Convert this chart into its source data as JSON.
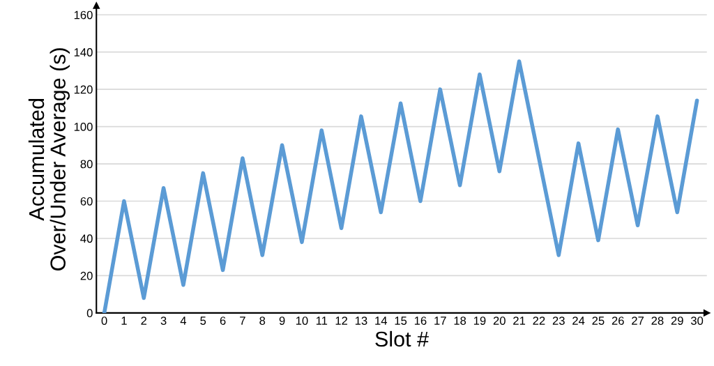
{
  "chart_data": {
    "type": "line",
    "xlabel": "Slot #",
    "ylabel": "Accumulated\nOver/Under Average (s)",
    "x": [
      0,
      1,
      2,
      3,
      4,
      5,
      6,
      7,
      8,
      9,
      10,
      11,
      12,
      13,
      14,
      15,
      16,
      17,
      18,
      19,
      20,
      21,
      22,
      23,
      24,
      25,
      26,
      27,
      28,
      29,
      30
    ],
    "series": [
      {
        "color": "#5b9bd5",
        "values": [
          0,
          60,
          8,
          67,
          15,
          75,
          23,
          83,
          31,
          90,
          38,
          98,
          45.5,
          105.5,
          54,
          112.5,
          60,
          120,
          68.5,
          128,
          76,
          135,
          83,
          31,
          91,
          39,
          98.5,
          47,
          105.5,
          54,
          114
        ]
      }
    ],
    "xlim": [
      -0.4,
      30.5
    ],
    "xticks": [
      0,
      1,
      2,
      3,
      4,
      5,
      6,
      7,
      8,
      9,
      10,
      11,
      12,
      13,
      14,
      15,
      16,
      17,
      18,
      19,
      20,
      21,
      22,
      23,
      24,
      25,
      26,
      27,
      28,
      29,
      30
    ],
    "ylim": [
      0,
      165
    ],
    "yticks": [
      0,
      20,
      40,
      60,
      80,
      100,
      120,
      140,
      160
    ],
    "grid": "y",
    "marker": "none",
    "line_style": "solid"
  }
}
